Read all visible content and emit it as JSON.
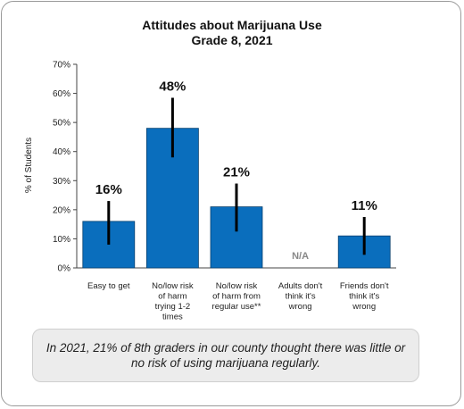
{
  "chart_data": {
    "type": "bar",
    "title": "Attitudes about Marijuana Use",
    "subtitle": "Grade 8, 2021",
    "ylabel": "% of Students",
    "ylim": [
      0,
      70
    ],
    "yticks": [
      0,
      10,
      20,
      30,
      40,
      50,
      60,
      70
    ],
    "ytick_labels": [
      "0%",
      "10%",
      "20%",
      "30%",
      "40%",
      "50%",
      "60%",
      "70%"
    ],
    "grid": false,
    "bar_color": "#0a6ebd",
    "categories": [
      [
        "Easy to get"
      ],
      [
        "No/low risk",
        "of harm",
        "trying 1-2",
        "times"
      ],
      [
        "No/low risk",
        "of harm from",
        "regular use**"
      ],
      [
        "Adults don't",
        "think it's",
        "wrong"
      ],
      [
        "Friends don't",
        "think it's",
        "wrong"
      ]
    ],
    "values": [
      16,
      48,
      21,
      null,
      11
    ],
    "data_labels": [
      "16%",
      "48%",
      "21%",
      "N/A",
      "11%"
    ],
    "error_bars": [
      {
        "low": 8,
        "high": 23
      },
      {
        "low": 38,
        "high": 58.5
      },
      {
        "low": 12.5,
        "high": 29
      },
      null,
      {
        "low": 4.5,
        "high": 17.5
      }
    ]
  },
  "caption": "In 2021, 21% of 8th graders in our county thought there was little or no risk of using marijuana regularly."
}
